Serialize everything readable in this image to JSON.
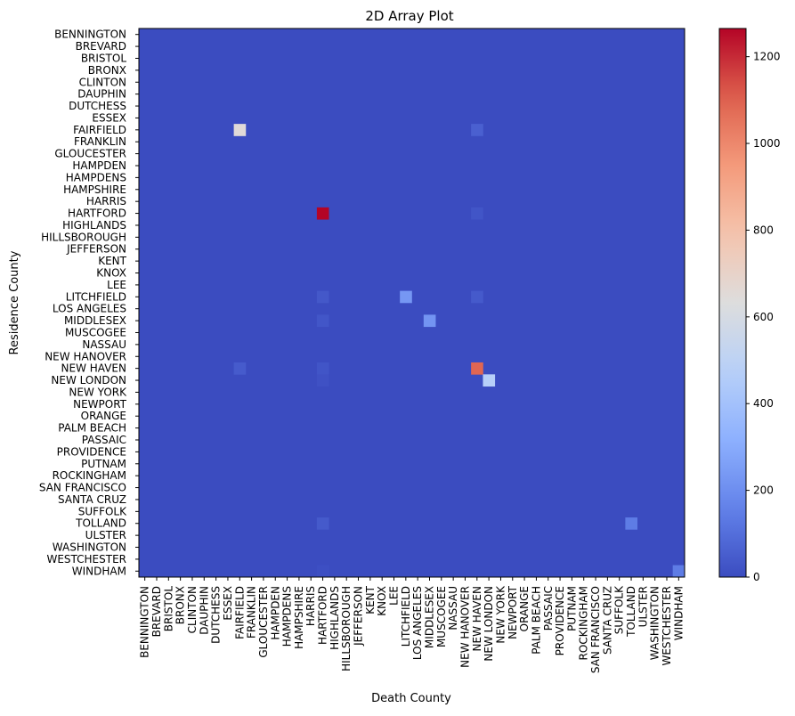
{
  "chart_data": {
    "type": "heatmap",
    "title": "2D Array Plot",
    "xlabel": "Death County",
    "ylabel": "Residence County",
    "x_categories": [
      "BENNINGTON",
      "BREVARD",
      "BRISTOL",
      "BRONX",
      "CLINTON",
      "DAUPHIN",
      "DUTCHESS",
      "ESSEX",
      "FAIRFIELD",
      "FRANKLIN",
      "GLOUCESTER",
      "HAMPDEN",
      "HAMPDENS",
      "HAMPSHIRE",
      "HARRIS",
      "HARTFORD",
      "HIGHLANDS",
      "HILLSBOROUGH",
      "JEFFERSON",
      "KENT",
      "KNOX",
      "LEE",
      "LITCHFIELD",
      "LOS ANGELES",
      "MIDDLESEX",
      "MUSCOGEE",
      "NASSAU",
      "NEW HANOVER",
      "NEW HAVEN",
      "NEW LONDON",
      "NEW YORK",
      "NEWPORT",
      "ORANGE",
      "PALM BEACH",
      "PASSAIC",
      "PROVIDENCE",
      "PUTNAM",
      "ROCKINGHAM",
      "SAN FRANCISCO",
      "SANTA CRUZ",
      "SUFFOLK",
      "TOLLAND",
      "ULSTER",
      "WASHINGTON",
      "WESTCHESTER",
      "WINDHAM"
    ],
    "y_categories": [
      "BENNINGTON",
      "BREVARD",
      "BRISTOL",
      "BRONX",
      "CLINTON",
      "DAUPHIN",
      "DUTCHESS",
      "ESSEX",
      "FAIRFIELD",
      "FRANKLIN",
      "GLOUCESTER",
      "HAMPDEN",
      "HAMPDENS",
      "HAMPSHIRE",
      "HARRIS",
      "HARTFORD",
      "HIGHLANDS",
      "HILLSBOROUGH",
      "JEFFERSON",
      "KENT",
      "KNOX",
      "LEE",
      "LITCHFIELD",
      "LOS ANGELES",
      "MIDDLESEX",
      "MUSCOGEE",
      "NASSAU",
      "NEW HANOVER",
      "NEW HAVEN",
      "NEW LONDON",
      "NEW YORK",
      "NEWPORT",
      "ORANGE",
      "PALM BEACH",
      "PASSAIC",
      "PROVIDENCE",
      "PUTNAM",
      "ROCKINGHAM",
      "SAN FRANCISCO",
      "SANTA CRUZ",
      "SUFFOLK",
      "TOLLAND",
      "ULSTER",
      "WASHINGTON",
      "WESTCHESTER",
      "WINDHAM"
    ],
    "nonzero_cells": [
      {
        "x": "FAIRFIELD",
        "y": "FAIRFIELD",
        "value": 650
      },
      {
        "x": "NEW HAVEN",
        "y": "FAIRFIELD",
        "value": 60
      },
      {
        "x": "HARTFORD",
        "y": "HARTFORD",
        "value": 1265
      },
      {
        "x": "NEW HAVEN",
        "y": "HARTFORD",
        "value": 25
      },
      {
        "x": "LITCHFIELD",
        "y": "LITCHFIELD",
        "value": 230
      },
      {
        "x": "HARTFORD",
        "y": "LITCHFIELD",
        "value": 35
      },
      {
        "x": "NEW HAVEN",
        "y": "LITCHFIELD",
        "value": 40
      },
      {
        "x": "MIDDLESEX",
        "y": "MIDDLESEX",
        "value": 220
      },
      {
        "x": "HARTFORD",
        "y": "MIDDLESEX",
        "value": 30
      },
      {
        "x": "NEW HAVEN",
        "y": "NEW HAVEN",
        "value": 1090
      },
      {
        "x": "FAIRFIELD",
        "y": "NEW HAVEN",
        "value": 45
      },
      {
        "x": "HARTFORD",
        "y": "NEW HAVEN",
        "value": 25
      },
      {
        "x": "NEW LONDON",
        "y": "NEW LONDON",
        "value": 470
      },
      {
        "x": "HARTFORD",
        "y": "NEW LONDON",
        "value": 15
      },
      {
        "x": "TOLLAND",
        "y": "TOLLAND",
        "value": 140
      },
      {
        "x": "HARTFORD",
        "y": "TOLLAND",
        "value": 40
      },
      {
        "x": "WINDHAM",
        "y": "WINDHAM",
        "value": 140
      },
      {
        "x": "HARTFORD",
        "y": "WINDHAM",
        "value": 10
      }
    ],
    "default_value": 0,
    "vmin": 0,
    "vmax": 1265,
    "colormap": "coolwarm",
    "colorbar_ticks": [
      0,
      200,
      400,
      600,
      800,
      1000,
      1200
    ],
    "grid": false
  }
}
